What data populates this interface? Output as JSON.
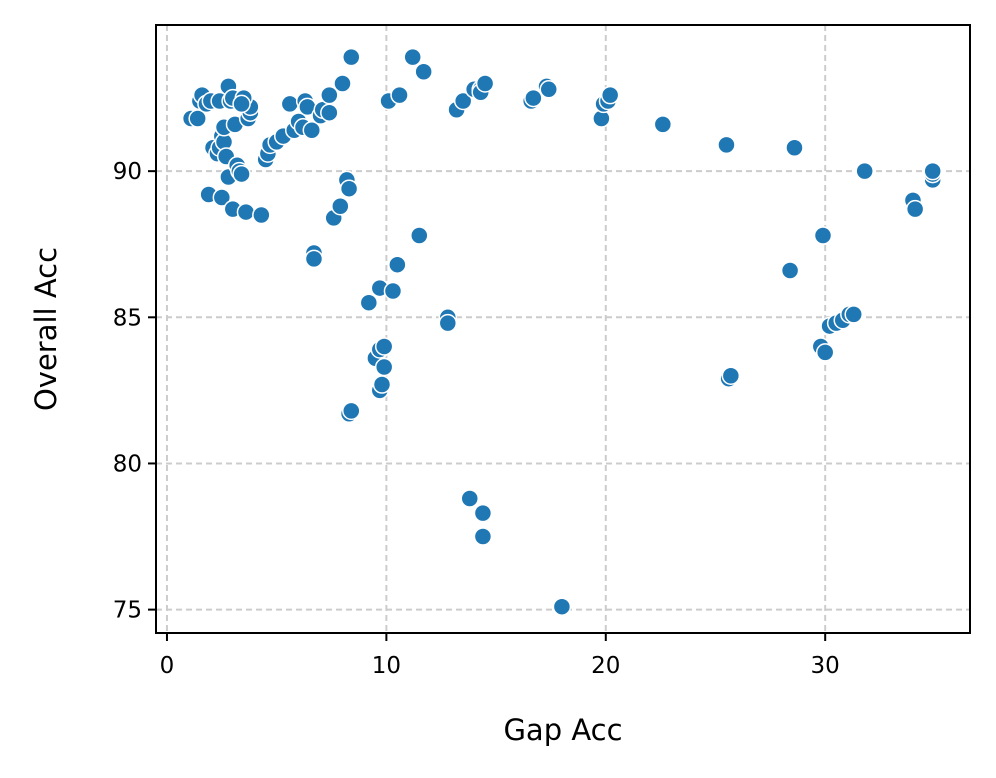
{
  "chart_data": {
    "type": "scatter",
    "title": "",
    "xlabel": "Gap Acc",
    "ylabel": "Overall Acc",
    "xlim": [
      -0.5,
      36.6
    ],
    "ylim": [
      74.2,
      95.0
    ],
    "xticks": [
      0,
      10,
      20,
      30
    ],
    "yticks": [
      75,
      80,
      85,
      90
    ],
    "xtick_labels": [
      "0",
      "10",
      "20",
      "30"
    ],
    "ytick_labels": [
      "75",
      "80",
      "85",
      "90"
    ],
    "grid": true,
    "grid_style": "dashed",
    "legend": "none",
    "marker_color": "#1f77b4",
    "marker_edge_color": "#ffffff",
    "points": [
      [
        1.1,
        91.8
      ],
      [
        1.4,
        91.8
      ],
      [
        1.5,
        92.4
      ],
      [
        1.6,
        92.6
      ],
      [
        1.8,
        92.3
      ],
      [
        2.0,
        92.4
      ],
      [
        2.4,
        92.4
      ],
      [
        1.9,
        89.2
      ],
      [
        2.1,
        90.8
      ],
      [
        2.3,
        90.6
      ],
      [
        2.4,
        90.8
      ],
      [
        2.5,
        91.2
      ],
      [
        2.6,
        91.0
      ],
      [
        2.6,
        91.5
      ],
      [
        2.7,
        90.5
      ],
      [
        2.5,
        89.1
      ],
      [
        2.8,
        92.9
      ],
      [
        2.9,
        92.4
      ],
      [
        3.0,
        92.5
      ],
      [
        2.8,
        89.8
      ],
      [
        3.0,
        88.7
      ],
      [
        3.1,
        91.6
      ],
      [
        3.2,
        90.2
      ],
      [
        3.3,
        90.0
      ],
      [
        3.4,
        89.9
      ],
      [
        3.6,
        88.6
      ],
      [
        3.7,
        91.8
      ],
      [
        3.8,
        92.0
      ],
      [
        3.8,
        92.2
      ],
      [
        3.5,
        92.5
      ],
      [
        3.4,
        92.3
      ],
      [
        4.3,
        88.5
      ],
      [
        4.5,
        90.4
      ],
      [
        4.6,
        90.6
      ],
      [
        4.7,
        90.9
      ],
      [
        5.0,
        91.0
      ],
      [
        5.3,
        91.2
      ],
      [
        5.6,
        92.3
      ],
      [
        5.8,
        91.4
      ],
      [
        6.0,
        91.7
      ],
      [
        6.3,
        92.4
      ],
      [
        6.4,
        92.2
      ],
      [
        6.2,
        91.5
      ],
      [
        6.6,
        91.4
      ],
      [
        6.7,
        87.2
      ],
      [
        6.7,
        87.0
      ],
      [
        7.0,
        91.9
      ],
      [
        7.1,
        92.1
      ],
      [
        7.4,
        92.0
      ],
      [
        7.4,
        92.6
      ],
      [
        7.6,
        88.4
      ],
      [
        7.9,
        88.8
      ],
      [
        8.0,
        93.0
      ],
      [
        8.2,
        89.7
      ],
      [
        8.3,
        89.4
      ],
      [
        8.4,
        93.9
      ],
      [
        8.3,
        81.7
      ],
      [
        8.4,
        81.8
      ],
      [
        9.2,
        85.5
      ],
      [
        9.5,
        83.6
      ],
      [
        9.7,
        86.0
      ],
      [
        9.7,
        83.9
      ],
      [
        9.7,
        82.5
      ],
      [
        9.8,
        82.7
      ],
      [
        9.9,
        84.0
      ],
      [
        9.9,
        83.3
      ],
      [
        10.1,
        92.4
      ],
      [
        10.3,
        85.9
      ],
      [
        10.5,
        86.8
      ],
      [
        10.6,
        92.6
      ],
      [
        11.2,
        93.9
      ],
      [
        11.5,
        87.8
      ],
      [
        11.7,
        93.4
      ],
      [
        12.8,
        85.0
      ],
      [
        12.8,
        84.8
      ],
      [
        13.2,
        92.1
      ],
      [
        13.5,
        92.4
      ],
      [
        13.8,
        78.8
      ],
      [
        14.0,
        92.8
      ],
      [
        14.3,
        92.8
      ],
      [
        14.3,
        92.7
      ],
      [
        14.5,
        93.0
      ],
      [
        14.4,
        78.3
      ],
      [
        14.4,
        77.5
      ],
      [
        16.6,
        92.4
      ],
      [
        16.7,
        92.5
      ],
      [
        17.3,
        92.9
      ],
      [
        17.4,
        92.8
      ],
      [
        18.0,
        75.1
      ],
      [
        19.8,
        91.8
      ],
      [
        19.9,
        92.3
      ],
      [
        20.1,
        92.4
      ],
      [
        20.2,
        92.6
      ],
      [
        22.6,
        91.6
      ],
      [
        25.5,
        90.9
      ],
      [
        25.6,
        82.9
      ],
      [
        25.7,
        83.0
      ],
      [
        28.4,
        86.6
      ],
      [
        28.6,
        90.8
      ],
      [
        29.8,
        84.0
      ],
      [
        29.9,
        87.8
      ],
      [
        30.0,
        83.8
      ],
      [
        30.2,
        84.7
      ],
      [
        30.5,
        84.8
      ],
      [
        30.8,
        84.9
      ],
      [
        31.1,
        85.1
      ],
      [
        31.3,
        85.1
      ],
      [
        31.8,
        90.0
      ],
      [
        34.0,
        89.0
      ],
      [
        34.1,
        88.7
      ],
      [
        34.9,
        89.7
      ],
      [
        34.9,
        89.9
      ],
      [
        34.9,
        90.0
      ]
    ]
  }
}
